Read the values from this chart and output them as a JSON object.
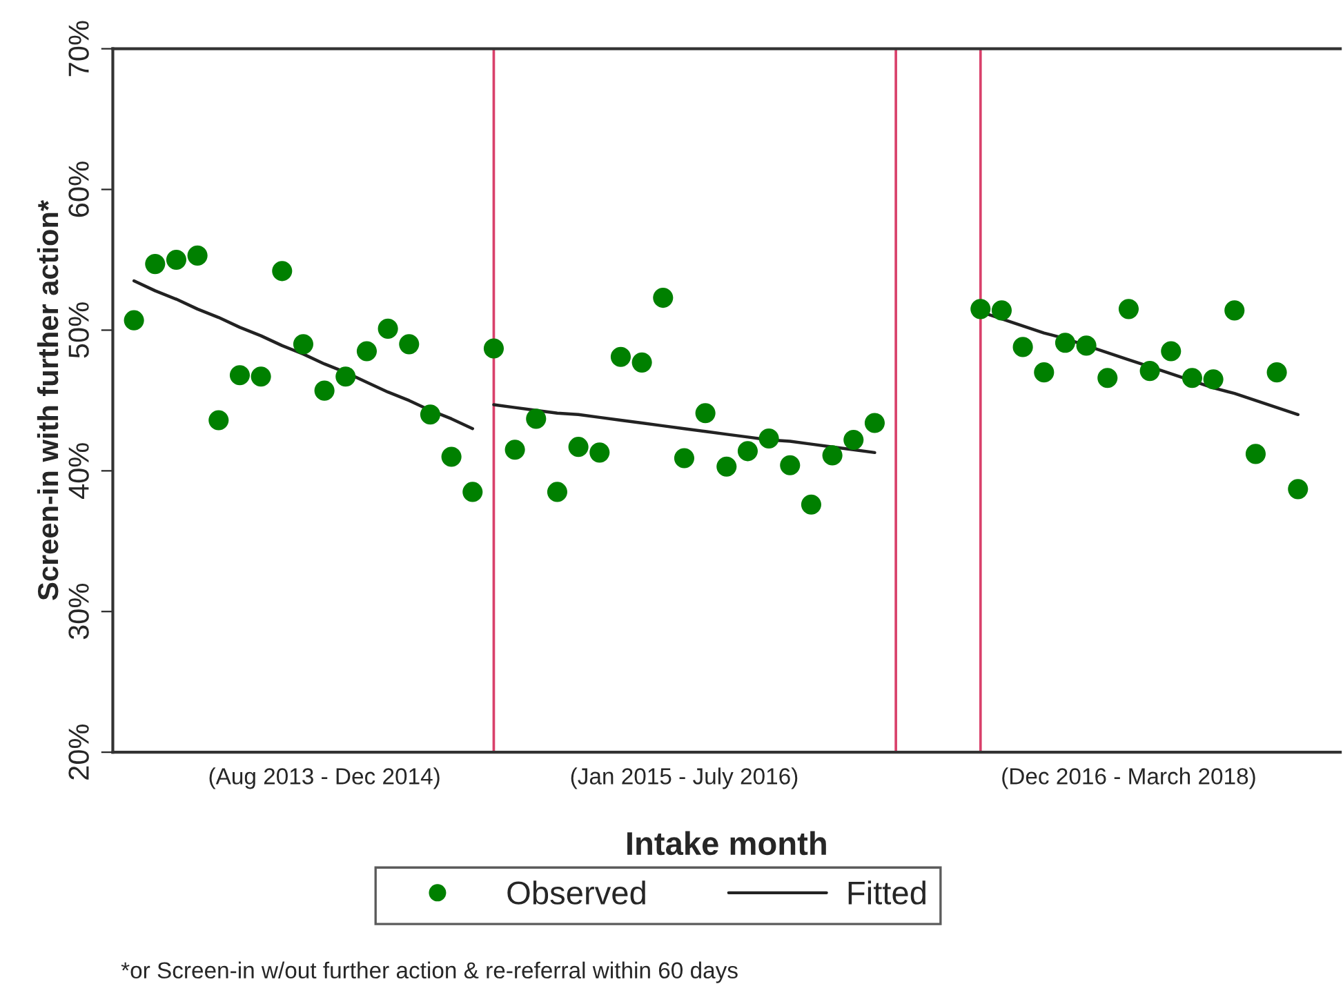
{
  "chart_data": {
    "type": "scatter",
    "xlabel": "Intake month",
    "ylabel": "Screen-in with further action*",
    "annotations": [
      "*or Screen-in w/out further action & re-referral within 60 days"
    ],
    "categories": [
      null,
      null,
      null,
      null,
      null,
      null,
      null,
      null,
      null,
      "(Aug 2013 - Dec 2014)",
      null,
      null,
      null,
      null,
      null,
      null,
      null,
      null,
      null,
      null,
      null,
      null,
      null,
      null,
      null,
      null,
      "(Jan 2015 - July 2016)",
      null,
      null,
      null,
      null,
      null,
      null,
      null,
      null,
      null,
      null,
      null,
      null,
      null,
      null,
      null,
      null,
      null,
      null,
      null,
      null,
      "(Dec 2016 - March 2018)",
      null,
      null,
      null,
      null,
      null,
      null,
      null,
      null
    ],
    "ylim": [
      20,
      70
    ],
    "yticks": [
      {
        "value": 20,
        "label": "20%"
      },
      {
        "value": 30,
        "label": "30%"
      },
      {
        "value": 40,
        "label": "40%"
      },
      {
        "value": 50,
        "label": "50%"
      },
      {
        "value": 60,
        "label": "60%"
      },
      {
        "value": 70,
        "label": "70%"
      }
    ],
    "legend": "bottom",
    "series": [
      {
        "name": "Observed",
        "color": "#008000",
        "marker": "circle",
        "values": [
          50.7,
          54.7,
          55.0,
          55.3,
          43.6,
          46.8,
          46.7,
          54.2,
          49.0,
          45.7,
          46.7,
          48.5,
          50.1,
          49.0,
          44.0,
          41.0,
          38.5,
          48.7,
          41.5,
          43.7,
          38.5,
          41.7,
          41.3,
          48.1,
          47.7,
          52.3,
          40.9,
          44.1,
          40.3,
          41.4,
          42.3,
          40.4,
          37.6,
          41.1,
          42.2,
          43.4,
          null,
          null,
          null,
          null,
          51.5,
          51.4,
          48.8,
          47.0,
          49.1,
          48.9,
          46.6,
          51.5,
          47.1,
          48.5,
          46.6,
          46.5,
          51.4,
          41.2,
          47.0,
          38.7
        ]
      },
      {
        "name": "Fitted",
        "type": "line",
        "color": "#222222",
        "line_style": "solid",
        "values": [
          53.5,
          52.8,
          52.2,
          51.5,
          50.9,
          50.2,
          49.6,
          48.9,
          48.3,
          47.6,
          47.0,
          46.3,
          45.6,
          45.0,
          44.3,
          43.7,
          43.0,
          null,
          null,
          null,
          null,
          null,
          null,
          null,
          null,
          null,
          null,
          null,
          null,
          null,
          null,
          null,
          null,
          null,
          null,
          null,
          null,
          null,
          null,
          null,
          null,
          null,
          null,
          null,
          null,
          null,
          null,
          null,
          null,
          null,
          null,
          null,
          null,
          null,
          null,
          null
        ]
      },
      {
        "type": "line",
        "color": "#222222",
        "line_style": "solid",
        "values": [
          null,
          null,
          null,
          null,
          null,
          null,
          null,
          null,
          null,
          null,
          null,
          null,
          null,
          null,
          null,
          null,
          null,
          44.7,
          44.5,
          44.3,
          44.1,
          44.0,
          43.8,
          43.6,
          43.4,
          43.2,
          43.0,
          42.8,
          42.6,
          42.4,
          42.2,
          42.1,
          41.9,
          41.7,
          41.5,
          41.3,
          null,
          null,
          null,
          null,
          null,
          null,
          null,
          null,
          null,
          null,
          null,
          null,
          null,
          null,
          null,
          null,
          null,
          null,
          null,
          null
        ]
      },
      {
        "type": "line",
        "color": "#222222",
        "line_style": "solid",
        "values": [
          null,
          null,
          null,
          null,
          null,
          null,
          null,
          null,
          null,
          null,
          null,
          null,
          null,
          null,
          null,
          null,
          null,
          null,
          null,
          null,
          null,
          null,
          null,
          null,
          null,
          null,
          null,
          null,
          null,
          null,
          null,
          null,
          null,
          null,
          null,
          null,
          null,
          null,
          null,
          null,
          51.3,
          50.8,
          50.3,
          49.8,
          49.4,
          48.9,
          48.4,
          47.9,
          47.4,
          46.9,
          46.4,
          45.9,
          45.5,
          45.0,
          44.5,
          44.0
        ]
      }
    ]
  }
}
